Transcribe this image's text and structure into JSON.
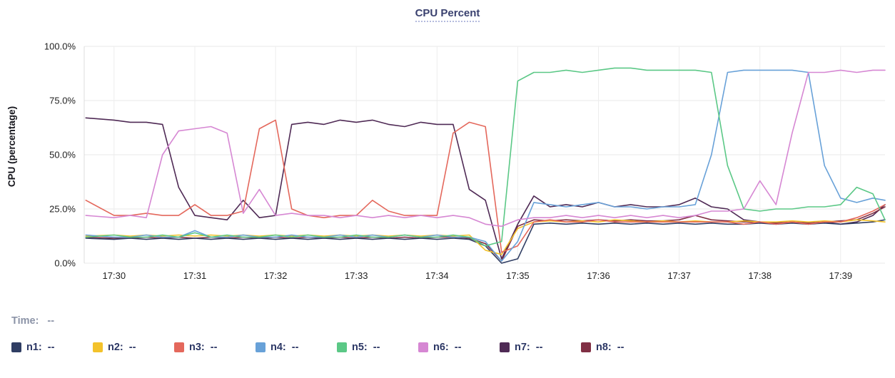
{
  "time_row": {
    "label": "Time:",
    "value": "--"
  },
  "chart_data": {
    "type": "line",
    "title": "CPU Percent",
    "xlabel": "",
    "ylabel": "CPU (percentage)",
    "ylim": [
      0,
      100
    ],
    "grid": true,
    "legend_position": "bottom",
    "y_ticks": [
      "100.0%",
      "75.0%",
      "50.0%",
      "25.0%",
      "0.0%"
    ],
    "y_tick_values": [
      100,
      75,
      50,
      25,
      0
    ],
    "x_ticks": [
      "17:30",
      "17:31",
      "17:32",
      "17:33",
      "17:34",
      "17:35",
      "17:36",
      "17:37",
      "17:38",
      "17:39"
    ],
    "x_tick_values": [
      30,
      31,
      32,
      33,
      34,
      35,
      36,
      37,
      38,
      39
    ],
    "x_unit": "minutes-after-17:00",
    "x_range": [
      29.63,
      39.55
    ],
    "x": [
      29.65,
      30.0,
      30.2,
      30.4,
      30.6,
      30.8,
      31.0,
      31.2,
      31.4,
      31.6,
      31.8,
      32.0,
      32.2,
      32.4,
      32.6,
      32.8,
      33.0,
      33.2,
      33.4,
      33.6,
      33.8,
      34.0,
      34.2,
      34.4,
      34.6,
      34.8,
      35.0,
      35.2,
      35.4,
      35.6,
      35.8,
      36.0,
      36.2,
      36.4,
      36.6,
      36.8,
      37.0,
      37.2,
      37.4,
      37.6,
      37.8,
      38.0,
      38.2,
      38.4,
      38.6,
      38.8,
      39.0,
      39.2,
      39.4,
      39.55
    ],
    "series": [
      {
        "name": "n1",
        "label": "n1:",
        "value": "--",
        "color": "#2f3d63",
        "values": [
          11.5,
          11,
          11.5,
          11,
          11.5,
          11,
          11.5,
          11,
          11.5,
          11,
          11.5,
          11,
          11.5,
          11,
          11.5,
          11,
          11.5,
          11,
          11.5,
          11,
          11.5,
          11,
          11.5,
          11,
          8,
          0,
          2,
          18,
          18.5,
          18,
          18.5,
          18,
          18.5,
          18,
          18.5,
          18,
          18.5,
          18,
          18.5,
          18,
          18,
          18.5,
          18,
          18.5,
          18,
          18.5,
          18,
          18.5,
          19,
          20
        ]
      },
      {
        "name": "n2",
        "label": "n2:",
        "value": "--",
        "color": "#f3c22b",
        "values": [
          12.5,
          13,
          12.5,
          13,
          12.5,
          13,
          12.5,
          13,
          12.5,
          13,
          12.5,
          13,
          12.5,
          13,
          12.5,
          13,
          12.5,
          13,
          12.5,
          13,
          12.5,
          13,
          12.5,
          13,
          6,
          4,
          16,
          19,
          19.5,
          19,
          19.5,
          19,
          20,
          19.5,
          19,
          19.5,
          19,
          19.5,
          19,
          19,
          19.5,
          19,
          19,
          19.5,
          19,
          19.5,
          19,
          20,
          19.5,
          19
        ]
      },
      {
        "name": "n3",
        "label": "n3:",
        "value": "--",
        "color": "#e4685c",
        "values": [
          29,
          22,
          22,
          23,
          22,
          22,
          27,
          22,
          22,
          24,
          62,
          66,
          25,
          22,
          21,
          22,
          22,
          29,
          24,
          22,
          22,
          22,
          60,
          65,
          63,
          5,
          8,
          19,
          20,
          19,
          19,
          20,
          19,
          19,
          19,
          19,
          19,
          19,
          19,
          19,
          18,
          19,
          18,
          19,
          18,
          19,
          19,
          21,
          24,
          27
        ]
      },
      {
        "name": "n4",
        "label": "n4:",
        "value": "--",
        "color": "#68a1d8",
        "values": [
          13,
          12,
          12,
          13,
          12,
          12,
          15,
          12,
          12,
          13,
          12,
          12,
          13,
          12,
          12,
          13,
          12,
          13,
          12,
          13,
          12,
          13,
          12,
          12,
          10,
          1,
          10,
          28,
          27,
          26,
          27,
          28,
          26,
          26,
          25,
          26,
          26,
          27,
          50,
          88,
          89,
          89,
          89,
          89,
          88,
          45,
          30,
          28,
          30,
          29
        ]
      },
      {
        "name": "n5",
        "label": "n5:",
        "value": "--",
        "color": "#5bc886",
        "values": [
          12,
          13,
          12,
          12,
          13,
          12,
          14,
          12,
          13,
          12,
          12,
          13,
          12,
          13,
          12,
          12,
          13,
          12,
          12,
          13,
          12,
          12,
          13,
          12,
          8,
          10,
          84,
          88,
          88,
          89,
          88,
          89,
          90,
          90,
          89,
          89,
          89,
          89,
          88,
          45,
          25,
          24,
          25,
          25,
          26,
          26,
          27,
          35,
          32,
          20
        ]
      },
      {
        "name": "n6",
        "label": "n6:",
        "value": "--",
        "color": "#d687d3",
        "values": [
          22,
          21,
          22,
          21,
          50,
          61,
          62,
          63,
          60,
          23,
          34,
          22,
          23,
          22,
          22,
          21,
          22,
          21,
          22,
          21,
          22,
          21,
          22,
          21,
          18,
          17,
          20,
          21,
          21,
          22,
          21,
          22,
          21,
          22,
          21,
          22,
          21,
          22,
          24,
          24,
          25,
          38,
          27,
          60,
          88,
          88,
          89,
          88,
          89,
          89
        ]
      },
      {
        "name": "n7",
        "label": "n7:",
        "value": "--",
        "color": "#4f2a55",
        "values": [
          67,
          66,
          65,
          65,
          64,
          35,
          22,
          21,
          20,
          29,
          21,
          22,
          64,
          65,
          64,
          66,
          65,
          66,
          64,
          63,
          65,
          64,
          64,
          34,
          29,
          2,
          18,
          31,
          26,
          27,
          26,
          28,
          26,
          27,
          26,
          26,
          27,
          30,
          26,
          25,
          20,
          19,
          18,
          19,
          18,
          19,
          18,
          19,
          22,
          27
        ]
      },
      {
        "name": "n8",
        "label": "n8:",
        "value": "--",
        "color": "#802f44",
        "values": [
          12,
          11.5,
          11.5,
          12,
          11.5,
          12,
          11.5,
          12,
          11.5,
          12,
          11.5,
          12,
          11.5,
          12,
          11.5,
          12,
          11.5,
          12,
          11.5,
          12,
          11.5,
          12,
          12,
          11.5,
          9,
          1,
          17,
          20,
          19.5,
          20,
          19.5,
          20,
          19.5,
          20,
          19.5,
          19.5,
          20,
          22,
          20,
          19.5,
          19,
          19,
          18.5,
          19,
          18.5,
          19,
          19.5,
          20,
          23,
          26
        ]
      }
    ]
  }
}
